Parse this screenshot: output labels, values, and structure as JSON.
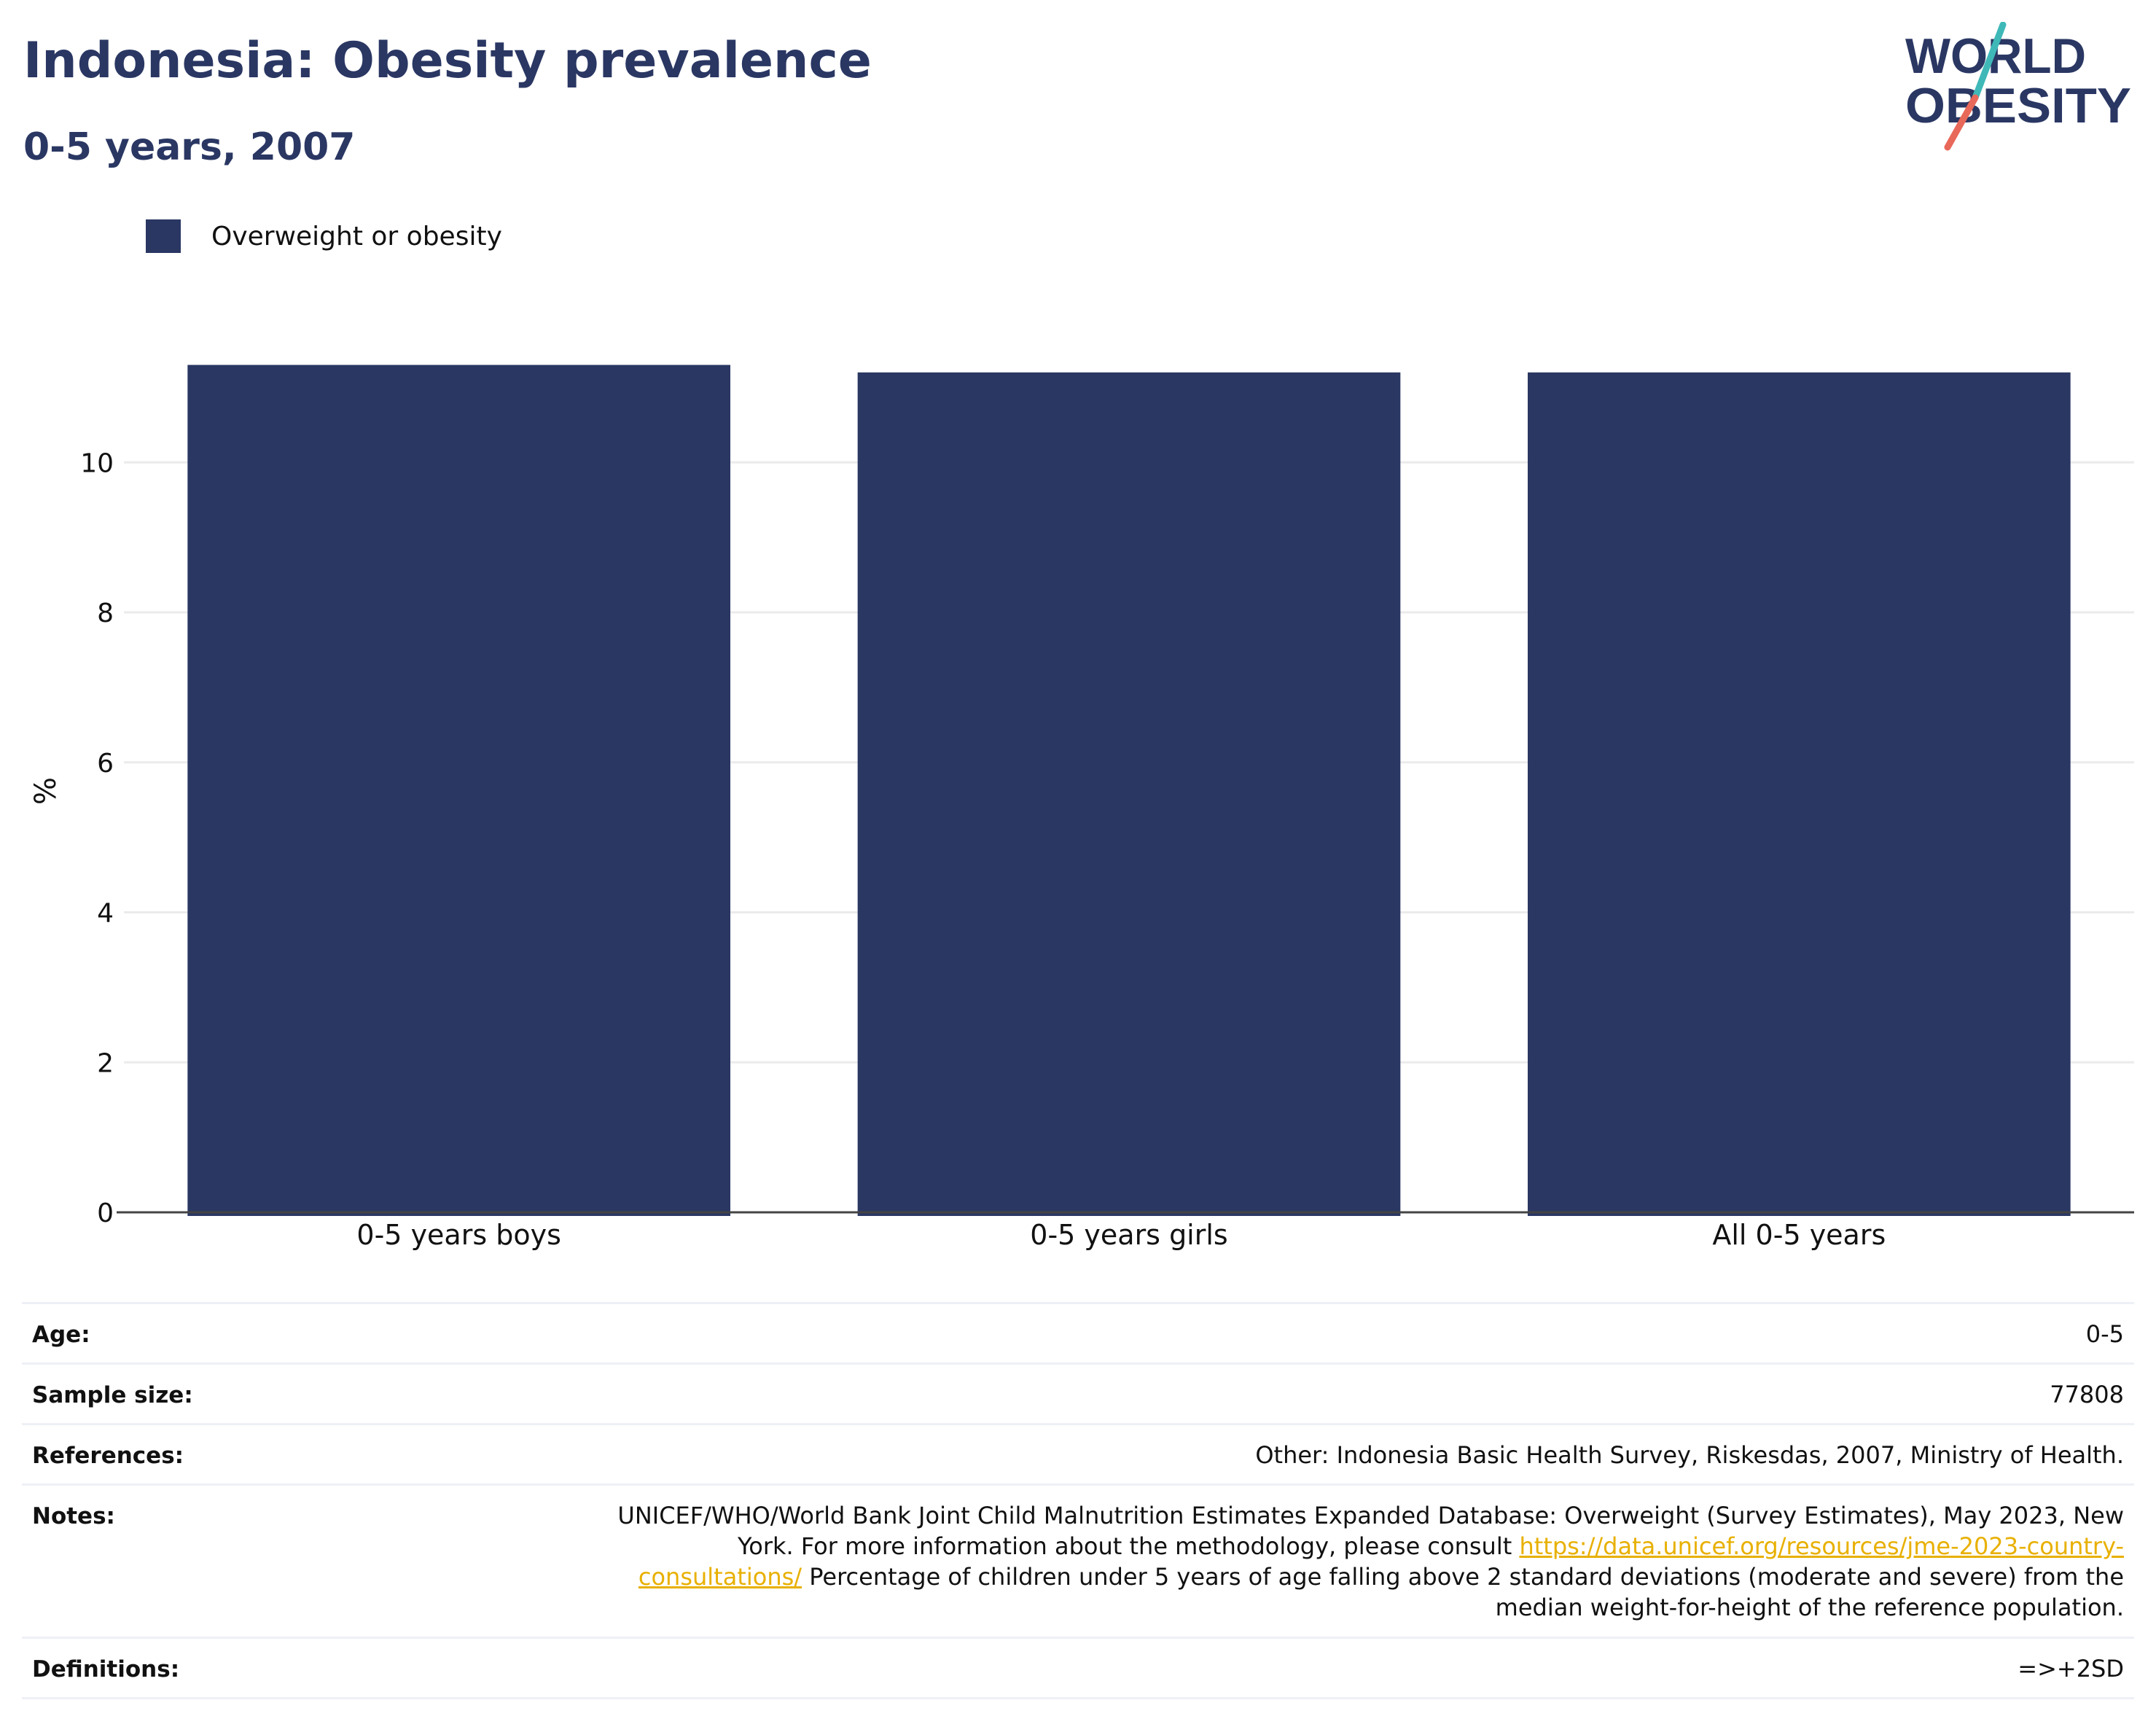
{
  "header": {
    "title": "Indonesia: Obesity prevalence",
    "subtitle": "0-5 years, 2007"
  },
  "logo": {
    "line1": "WORLD",
    "line2": "OBESITY",
    "colors": {
      "text": "#2a3763",
      "slash_top": "#3fb8b8",
      "slash_bottom": "#e8685a"
    }
  },
  "legend": {
    "label": "Overweight or obesity",
    "color": "#2a3763"
  },
  "chart_data": {
    "type": "bar",
    "categories": [
      "0-5 years boys",
      "0-5 years girls",
      "All 0-5 years"
    ],
    "series": [
      {
        "name": "Overweight or obesity",
        "values": [
          11.3,
          11.2,
          11.2
        ],
        "color": "#2a3763"
      }
    ],
    "xlabel": "",
    "ylabel": "%",
    "ylim": [
      0,
      11.5
    ],
    "yticks": [
      0,
      2,
      4,
      6,
      8,
      10
    ],
    "grid": true,
    "legend_position": "top-left"
  },
  "info": {
    "age": {
      "label": "Age:",
      "value": "0-5"
    },
    "sample_size": {
      "label": "Sample size:",
      "value": "77808"
    },
    "references": {
      "label": "References:",
      "value": "Other: Indonesia Basic Health Survey, Riskesdas, 2007, Ministry of Health."
    },
    "notes": {
      "label": "Notes:",
      "text_before": "UNICEF/WHO/World Bank Joint Child Malnutrition Estimates Expanded Database: Overweight (Survey Estimates), May 2023, New York. For more information about the methodology, please consult ",
      "link": "https://data.unicef.org/resources/jme-2023-country-consultations/",
      "text_after": " Percentage of children under 5 years of age falling above 2 standard deviations (moderate and severe) from the median weight-for-height of the reference population."
    },
    "definitions": {
      "label": "Definitions:",
      "value": "=>+2SD"
    }
  }
}
